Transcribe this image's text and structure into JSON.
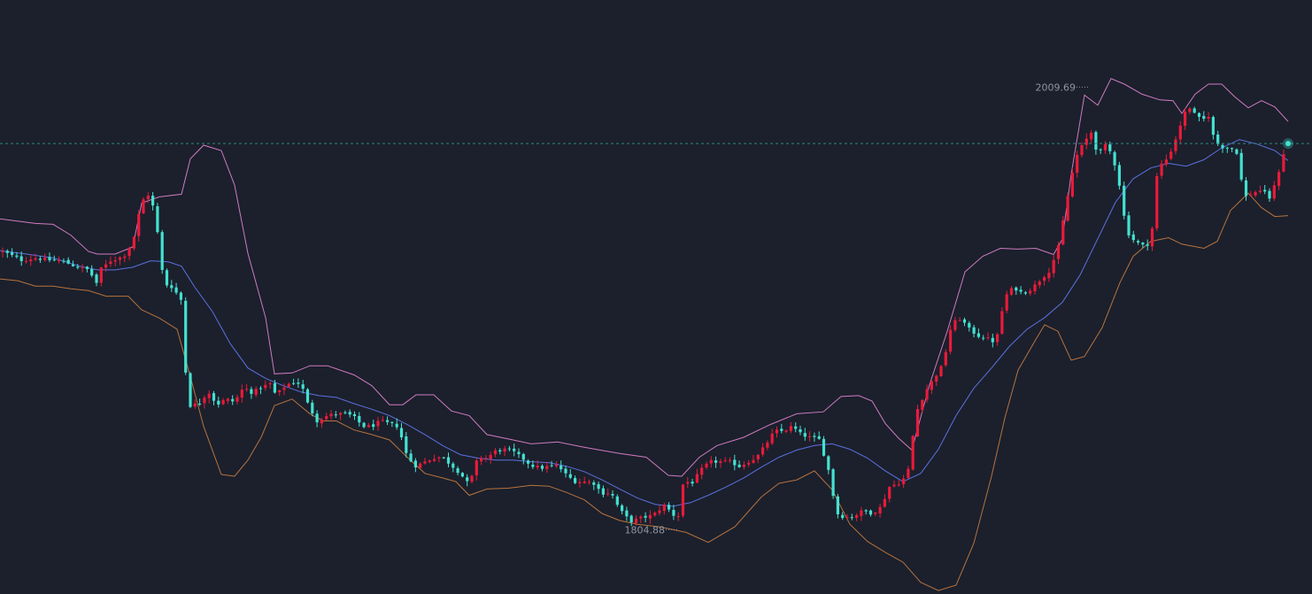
{
  "chart_data": {
    "type": "candlestick",
    "indicator": "bollinger-bands",
    "title": "",
    "ylim": [
      1775.1,
      2050.0
    ],
    "colors": {
      "background": "#1b202c",
      "up": "#ea1a3a",
      "down": "#44e1d1",
      "upper_band": "#d07ac0",
      "middle_band": "#5d70e0",
      "lower_band": "#b8723f",
      "current_price_line": "#2a8a84",
      "annotation_text": "#8e94a2"
    },
    "annotations": {
      "high_label": "2009.69",
      "low_label": "1804.88",
      "high_value": 2009.69,
      "low_value": 1804.88
    },
    "current_price": 1983.6,
    "candles_close_path": [
      [
        0,
        1934.0
      ],
      [
        12,
        1932.0
      ],
      [
        25,
        1929.5
      ],
      [
        40,
        1930.6
      ],
      [
        55,
        1929.7
      ],
      [
        70,
        1929.3
      ],
      [
        85,
        1926.8
      ],
      [
        100,
        1925.1
      ],
      [
        110,
        1918.4
      ],
      [
        113,
        1925.1
      ],
      [
        125,
        1929.3
      ],
      [
        140,
        1931.4
      ],
      [
        150,
        1937.9
      ],
      [
        160,
        1956.8
      ],
      [
        168,
        1960.1
      ],
      [
        172,
        1956.0
      ],
      [
        178,
        1942.1
      ],
      [
        185,
        1918.8
      ],
      [
        195,
        1917.1
      ],
      [
        205,
        1910.9
      ],
      [
        210,
        1875.7
      ],
      [
        215,
        1862.3
      ],
      [
        225,
        1863.2
      ],
      [
        235,
        1869.0
      ],
      [
        245,
        1862.7
      ],
      [
        255,
        1865.3
      ],
      [
        265,
        1864.0
      ],
      [
        275,
        1870.7
      ],
      [
        285,
        1868.2
      ],
      [
        295,
        1870.7
      ],
      [
        305,
        1872.4
      ],
      [
        312,
        1866.9
      ],
      [
        320,
        1870.7
      ],
      [
        330,
        1873.2
      ],
      [
        340,
        1872.4
      ],
      [
        348,
        1862.7
      ],
      [
        358,
        1855.2
      ],
      [
        370,
        1857.7
      ],
      [
        380,
        1858.5
      ],
      [
        392,
        1858.5
      ],
      [
        400,
        1856.9
      ],
      [
        410,
        1852.7
      ],
      [
        420,
        1852.7
      ],
      [
        430,
        1855.2
      ],
      [
        440,
        1853.9
      ],
      [
        450,
        1852.7
      ],
      [
        460,
        1838.4
      ],
      [
        470,
        1834.2
      ],
      [
        480,
        1836.3
      ],
      [
        492,
        1838.4
      ],
      [
        500,
        1838.4
      ],
      [
        510,
        1834.6
      ],
      [
        520,
        1830.9
      ],
      [
        530,
        1825.4
      ],
      [
        540,
        1838.4
      ],
      [
        550,
        1838.0
      ],
      [
        560,
        1841.3
      ],
      [
        572,
        1842.1
      ],
      [
        580,
        1840.9
      ],
      [
        590,
        1838.0
      ],
      [
        600,
        1834.6
      ],
      [
        612,
        1833.4
      ],
      [
        620,
        1834.2
      ],
      [
        630,
        1834.6
      ],
      [
        640,
        1830.0
      ],
      [
        650,
        1827.1
      ],
      [
        660,
        1827.1
      ],
      [
        670,
        1826.7
      ],
      [
        680,
        1821.7
      ],
      [
        690,
        1822.1
      ],
      [
        700,
        1814.1
      ],
      [
        712,
        1808.7
      ],
      [
        725,
        1810.4
      ],
      [
        738,
        1811.6
      ],
      [
        750,
        1816.2
      ],
      [
        760,
        1812.4
      ],
      [
        765,
        1808.2
      ],
      [
        772,
        1827.1
      ],
      [
        782,
        1826.7
      ],
      [
        792,
        1832.5
      ],
      [
        802,
        1836.3
      ],
      [
        815,
        1836.3
      ],
      [
        825,
        1836.3
      ],
      [
        835,
        1834.2
      ],
      [
        845,
        1836.3
      ],
      [
        855,
        1838.4
      ],
      [
        865,
        1844.2
      ],
      [
        875,
        1850.5
      ],
      [
        885,
        1850.5
      ],
      [
        895,
        1852.7
      ],
      [
        905,
        1848.9
      ],
      [
        915,
        1847.6
      ],
      [
        925,
        1846.8
      ],
      [
        935,
        1834.2
      ],
      [
        945,
        1812.4
      ],
      [
        955,
        1810.4
      ],
      [
        965,
        1811.2
      ],
      [
        975,
        1813.7
      ],
      [
        985,
        1812.4
      ],
      [
        995,
        1815.3
      ],
      [
        1005,
        1825.0
      ],
      [
        1015,
        1826.3
      ],
      [
        1025,
        1830.0
      ],
      [
        1035,
        1859.4
      ],
      [
        1045,
        1868.6
      ],
      [
        1055,
        1874.9
      ],
      [
        1065,
        1881.2
      ],
      [
        1075,
        1900.1
      ],
      [
        1085,
        1902.6
      ],
      [
        1095,
        1897.6
      ],
      [
        1105,
        1894.6
      ],
      [
        1115,
        1893.4
      ],
      [
        1125,
        1891.3
      ],
      [
        1135,
        1912.7
      ],
      [
        1145,
        1917.1
      ],
      [
        1155,
        1914.2
      ],
      [
        1165,
        1916.3
      ],
      [
        1175,
        1920.5
      ],
      [
        1185,
        1924.6
      ],
      [
        1195,
        1934.7
      ],
      [
        1203,
        1952.6
      ],
      [
        1210,
        1967.7
      ],
      [
        1218,
        1980.3
      ],
      [
        1225,
        1983.7
      ],
      [
        1232,
        1989.6
      ],
      [
        1240,
        1978.6
      ],
      [
        1250,
        1983.3
      ],
      [
        1258,
        1976.1
      ],
      [
        1265,
        1963.5
      ],
      [
        1272,
        1943.4
      ],
      [
        1280,
        1939.1
      ],
      [
        1290,
        1936.2
      ],
      [
        1300,
        1937.5
      ],
      [
        1308,
        1973.6
      ],
      [
        1315,
        1974.4
      ],
      [
        1325,
        1982.0
      ],
      [
        1335,
        1994.2
      ],
      [
        1342,
        2001.3
      ],
      [
        1350,
        1996.7
      ],
      [
        1358,
        1994.2
      ],
      [
        1365,
        1996.7
      ],
      [
        1372,
        1984.5
      ],
      [
        1380,
        1982.0
      ],
      [
        1390,
        1981.6
      ],
      [
        1398,
        1979.1
      ],
      [
        1405,
        1958.5
      ],
      [
        1415,
        1960.6
      ],
      [
        1425,
        1962.2
      ],
      [
        1435,
        1958.0
      ],
      [
        1443,
        1968.5
      ],
      [
        1450,
        1979.1
      ],
      [
        1455,
        1983.6
      ]
    ],
    "bollinger_upper": [
      [
        0,
        1948.7
      ],
      [
        40,
        1946.6
      ],
      [
        60,
        1946.2
      ],
      [
        80,
        1941.2
      ],
      [
        100,
        1933.6
      ],
      [
        110,
        1932.4
      ],
      [
        130,
        1932.4
      ],
      [
        150,
        1935.7
      ],
      [
        160,
        1956.0
      ],
      [
        180,
        1958.9
      ],
      [
        205,
        1960.1
      ],
      [
        215,
        1976.5
      ],
      [
        230,
        1982.8
      ],
      [
        250,
        1980.3
      ],
      [
        265,
        1964.3
      ],
      [
        280,
        1932.8
      ],
      [
        300,
        1903.0
      ],
      [
        310,
        1877.0
      ],
      [
        330,
        1877.4
      ],
      [
        350,
        1880.7
      ],
      [
        370,
        1880.7
      ],
      [
        400,
        1876.5
      ],
      [
        420,
        1871.5
      ],
      [
        440,
        1862.7
      ],
      [
        455,
        1862.7
      ],
      [
        470,
        1867.3
      ],
      [
        490,
        1867.3
      ],
      [
        510,
        1859.8
      ],
      [
        530,
        1857.7
      ],
      [
        550,
        1848.9
      ],
      [
        575,
        1846.8
      ],
      [
        600,
        1844.6
      ],
      [
        630,
        1845.5
      ],
      [
        660,
        1843.0
      ],
      [
        700,
        1840.1
      ],
      [
        730,
        1838.4
      ],
      [
        755,
        1830.0
      ],
      [
        770,
        1829.6
      ],
      [
        790,
        1838.4
      ],
      [
        810,
        1843.8
      ],
      [
        840,
        1847.6
      ],
      [
        870,
        1853.5
      ],
      [
        900,
        1858.5
      ],
      [
        930,
        1859.4
      ],
      [
        950,
        1866.5
      ],
      [
        970,
        1866.9
      ],
      [
        985,
        1864.4
      ],
      [
        1000,
        1854.0
      ],
      [
        1015,
        1847.2
      ],
      [
        1030,
        1841.7
      ],
      [
        1050,
        1872.0
      ],
      [
        1070,
        1896.7
      ],
      [
        1090,
        1924.2
      ],
      [
        1110,
        1931.4
      ],
      [
        1130,
        1935.1
      ],
      [
        1150,
        1934.7
      ],
      [
        1170,
        1935.1
      ],
      [
        1190,
        1932.2
      ],
      [
        1200,
        1939.3
      ],
      [
        1210,
        1969.4
      ],
      [
        1225,
        2006.0
      ],
      [
        1240,
        2001.3
      ],
      [
        1255,
        2013.6
      ],
      [
        1270,
        2011.1
      ],
      [
        1290,
        2006.4
      ],
      [
        1310,
        2003.8
      ],
      [
        1325,
        2003.4
      ],
      [
        1335,
        1997.5
      ],
      [
        1350,
        2006.4
      ],
      [
        1365,
        2011.1
      ],
      [
        1380,
        2011.1
      ],
      [
        1395,
        2005.1
      ],
      [
        1410,
        2000.1
      ],
      [
        1425,
        2003.4
      ],
      [
        1440,
        2000.5
      ],
      [
        1455,
        1993.8
      ]
    ],
    "bollinger_middle": [
      [
        0,
        1934.0
      ],
      [
        30,
        1932.4
      ],
      [
        60,
        1930.6
      ],
      [
        90,
        1926.8
      ],
      [
        110,
        1925.1
      ],
      [
        130,
        1925.1
      ],
      [
        150,
        1926.3
      ],
      [
        170,
        1929.3
      ],
      [
        190,
        1928.8
      ],
      [
        205,
        1926.8
      ],
      [
        220,
        1917.1
      ],
      [
        240,
        1905.8
      ],
      [
        260,
        1891.0
      ],
      [
        280,
        1879.7
      ],
      [
        300,
        1874.9
      ],
      [
        320,
        1871.5
      ],
      [
        340,
        1868.6
      ],
      [
        360,
        1866.9
      ],
      [
        380,
        1866.1
      ],
      [
        400,
        1863.2
      ],
      [
        420,
        1860.6
      ],
      [
        440,
        1857.7
      ],
      [
        460,
        1853.5
      ],
      [
        480,
        1848.9
      ],
      [
        500,
        1843.8
      ],
      [
        520,
        1839.6
      ],
      [
        540,
        1838.0
      ],
      [
        560,
        1837.1
      ],
      [
        580,
        1837.1
      ],
      [
        600,
        1836.3
      ],
      [
        620,
        1835.9
      ],
      [
        640,
        1834.2
      ],
      [
        660,
        1831.7
      ],
      [
        680,
        1827.9
      ],
      [
        700,
        1823.7
      ],
      [
        720,
        1819.5
      ],
      [
        740,
        1816.6
      ],
      [
        760,
        1815.7
      ],
      [
        780,
        1817.4
      ],
      [
        800,
        1820.8
      ],
      [
        820,
        1824.6
      ],
      [
        840,
        1828.8
      ],
      [
        860,
        1833.8
      ],
      [
        880,
        1838.4
      ],
      [
        900,
        1841.7
      ],
      [
        920,
        1843.8
      ],
      [
        940,
        1844.6
      ],
      [
        960,
        1842.1
      ],
      [
        980,
        1838.0
      ],
      [
        1000,
        1832.1
      ],
      [
        1020,
        1827.1
      ],
      [
        1040,
        1830.9
      ],
      [
        1060,
        1842.1
      ],
      [
        1080,
        1857.7
      ],
      [
        1100,
        1870.3
      ],
      [
        1120,
        1879.7
      ],
      [
        1140,
        1889.6
      ],
      [
        1160,
        1897.6
      ],
      [
        1180,
        1903.0
      ],
      [
        1200,
        1910.1
      ],
      [
        1220,
        1922.7
      ],
      [
        1240,
        1939.5
      ],
      [
        1260,
        1956.4
      ],
      [
        1280,
        1967.3
      ],
      [
        1300,
        1972.3
      ],
      [
        1320,
        1974.4
      ],
      [
        1340,
        1973.1
      ],
      [
        1360,
        1976.1
      ],
      [
        1380,
        1981.6
      ],
      [
        1400,
        1985.4
      ],
      [
        1420,
        1983.3
      ],
      [
        1440,
        1980.3
      ],
      [
        1455,
        1975.7
      ]
    ],
    "bollinger_lower": [
      [
        0,
        1920.9
      ],
      [
        20,
        1920.1
      ],
      [
        40,
        1917.6
      ],
      [
        60,
        1917.6
      ],
      [
        80,
        1916.3
      ],
      [
        100,
        1915.5
      ],
      [
        120,
        1912.9
      ],
      [
        145,
        1912.9
      ],
      [
        160,
        1906.6
      ],
      [
        180,
        1902.8
      ],
      [
        200,
        1897.6
      ],
      [
        215,
        1875.7
      ],
      [
        230,
        1852.7
      ],
      [
        250,
        1830.4
      ],
      [
        265,
        1829.6
      ],
      [
        280,
        1837.1
      ],
      [
        295,
        1847.6
      ],
      [
        310,
        1862.3
      ],
      [
        330,
        1865.3
      ],
      [
        350,
        1858.5
      ],
      [
        365,
        1855.2
      ],
      [
        380,
        1855.2
      ],
      [
        400,
        1851.0
      ],
      [
        420,
        1848.9
      ],
      [
        440,
        1846.4
      ],
      [
        460,
        1838.4
      ],
      [
        480,
        1830.9
      ],
      [
        500,
        1828.8
      ],
      [
        515,
        1827.1
      ],
      [
        530,
        1820.8
      ],
      [
        550,
        1823.7
      ],
      [
        575,
        1824.1
      ],
      [
        600,
        1825.4
      ],
      [
        620,
        1825.0
      ],
      [
        640,
        1822.1
      ],
      [
        660,
        1818.7
      ],
      [
        680,
        1812.4
      ],
      [
        700,
        1809.1
      ],
      [
        720,
        1807.4
      ],
      [
        745,
        1806.2
      ],
      [
        760,
        1804.9
      ],
      [
        775,
        1803.6
      ],
      [
        800,
        1799.0
      ],
      [
        830,
        1806.2
      ],
      [
        860,
        1820.0
      ],
      [
        880,
        1826.3
      ],
      [
        900,
        1827.9
      ],
      [
        920,
        1832.1
      ],
      [
        940,
        1823.3
      ],
      [
        960,
        1807.4
      ],
      [
        980,
        1799.4
      ],
      [
        1000,
        1794.4
      ],
      [
        1020,
        1789.8
      ],
      [
        1040,
        1780.5
      ],
      [
        1060,
        1776.7
      ],
      [
        1080,
        1779.2
      ],
      [
        1100,
        1798.6
      ],
      [
        1120,
        1829.6
      ],
      [
        1135,
        1856.5
      ],
      [
        1150,
        1878.7
      ],
      [
        1170,
        1892.9
      ],
      [
        1180,
        1899.7
      ],
      [
        1195,
        1896.7
      ],
      [
        1210,
        1883.3
      ],
      [
        1225,
        1885.0
      ],
      [
        1245,
        1898.4
      ],
      [
        1265,
        1919.2
      ],
      [
        1280,
        1931.4
      ],
      [
        1300,
        1938.3
      ],
      [
        1320,
        1940.0
      ],
      [
        1335,
        1937.0
      ],
      [
        1360,
        1935.1
      ],
      [
        1375,
        1938.3
      ],
      [
        1390,
        1952.6
      ],
      [
        1410,
        1960.6
      ],
      [
        1425,
        1953.9
      ],
      [
        1440,
        1949.8
      ],
      [
        1455,
        1950.2
      ]
    ]
  }
}
